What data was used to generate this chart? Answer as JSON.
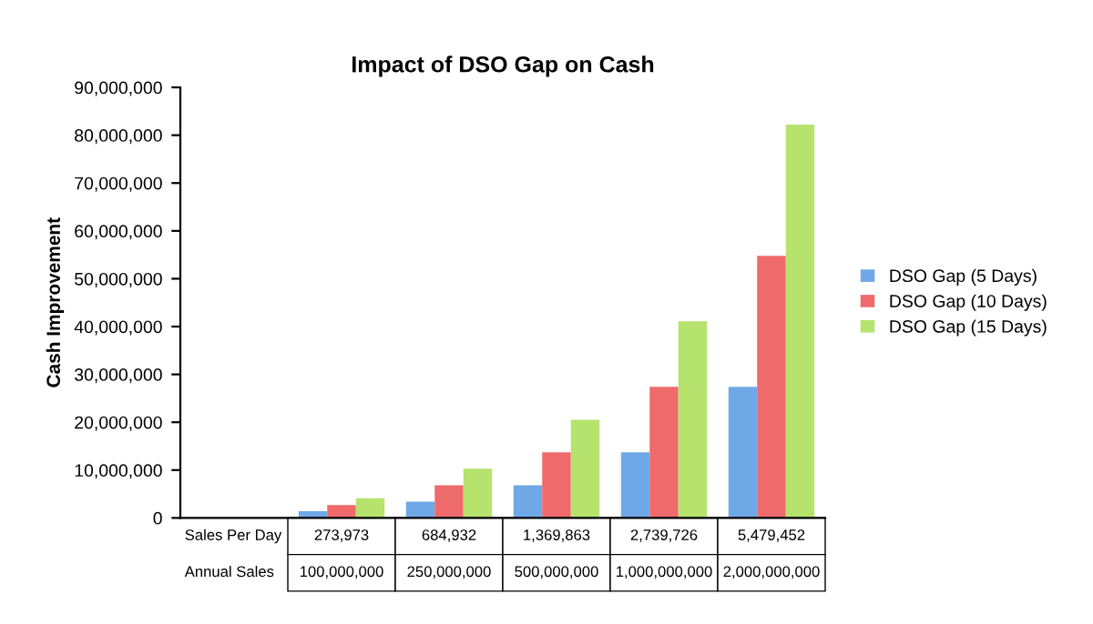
{
  "chart_data": {
    "type": "bar",
    "title": "Impact of DSO Gap on Cash",
    "ylabel": "Cash Improvement",
    "categories": [
      "Sales Per Day\nAnnual Sales",
      "273,973\n100,000,000",
      "684,932\n250,000,000",
      "1,369,863\n500,000,000",
      "2,739,726\n1,000,000,000",
      "5,479,452\n2,000,000,000"
    ],
    "series": [
      {
        "name": "DSO Gap (5 Days)",
        "color": "#6fa8e6",
        "values": [
          null,
          1400000,
          3400000,
          6800000,
          13700000,
          27400000
        ]
      },
      {
        "name": "DSO Gap (10 Days)",
        "color": "#ef6a6a",
        "values": [
          null,
          2700000,
          6800000,
          13700000,
          27400000,
          54800000
        ]
      },
      {
        "name": "DSO Gap (15 Days)",
        "color": "#b6e36e",
        "values": [
          null,
          4100000,
          10300000,
          20500000,
          41100000,
          82200000
        ]
      }
    ],
    "ylim": [
      0,
      90000000
    ],
    "yticks": [
      {
        "value": 0,
        "label": "0"
      },
      {
        "value": 10000000,
        "label": "10,000,000"
      },
      {
        "value": 20000000,
        "label": "20,000,000"
      },
      {
        "value": 30000000,
        "label": "30,000,000"
      },
      {
        "value": 40000000,
        "label": "40,000,000"
      },
      {
        "value": 50000000,
        "label": "50,000,000"
      },
      {
        "value": 60000000,
        "label": "60,000,000"
      },
      {
        "value": 70000000,
        "label": "70,000,000"
      },
      {
        "value": 80000000,
        "label": "80,000,000"
      },
      {
        "value": 90000000,
        "label": "90,000,000"
      }
    ],
    "grid": false,
    "legend": "right"
  }
}
